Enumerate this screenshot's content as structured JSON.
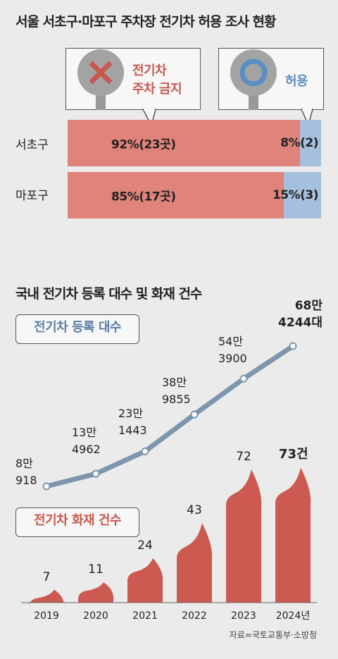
{
  "top": {
    "title": "서울 서초구·마포구 주차장 전기차 허용 조사 현황",
    "sign_ban": {
      "line1": "전기차",
      "line2": "주차 금지",
      "color": "#c9574f"
    },
    "sign_allow": {
      "label": "허용",
      "color": "#5a8fc4"
    },
    "rows": [
      {
        "name": "서초구",
        "ban_label": "92%(23곳)",
        "allow_label": "8%(2)"
      },
      {
        "name": "마포구",
        "ban_label": "85%(17곳)",
        "allow_label": "15%(3)"
      }
    ]
  },
  "bottom": {
    "title": "국내 전기차 등록 대수 및 화재 건수",
    "reg_box": "전기차 등록 대수",
    "fire_box": "전기차 화재 건수",
    "source": "자료=국토교통부·소방청"
  },
  "chart_data": [
    {
      "type": "bar",
      "orientation": "horizontal",
      "stacked": true,
      "categories": [
        "서초구",
        "마포구"
      ],
      "series": [
        {
          "name": "전기차 주차 금지",
          "values": [
            92,
            85
          ],
          "counts": [
            23,
            17
          ]
        },
        {
          "name": "허용",
          "values": [
            8,
            15
          ],
          "counts": [
            2,
            3
          ]
        }
      ],
      "colors": {
        "ban": "#e0837a",
        "allow": "#a5c0dd"
      }
    },
    {
      "type": "line",
      "title": "국내 전기차 등록 대수 및 화재 건수",
      "x": [
        "2019",
        "2020",
        "2021",
        "2022",
        "2023",
        "2024년"
      ],
      "series": [
        {
          "name": "전기차 등록 대수",
          "values": [
            80918,
            134962,
            231443,
            389855,
            543900,
            684244
          ]
        }
      ],
      "point_labels": [
        [
          "8만",
          "918"
        ],
        [
          "13만",
          "4962"
        ],
        [
          "23만",
          "1443"
        ],
        [
          "38만",
          "9855"
        ],
        [
          "54만",
          "3900"
        ],
        [
          "68만",
          "4244대"
        ]
      ],
      "color": "#7d96ad"
    },
    {
      "type": "bar",
      "x": [
        "2019",
        "2020",
        "2021",
        "2022",
        "2023",
        "2024년"
      ],
      "series": [
        {
          "name": "전기차 화재 건수",
          "values": [
            7,
            11,
            24,
            43,
            72,
            73
          ]
        }
      ],
      "value_labels": [
        "7",
        "11",
        "24",
        "43",
        "72",
        "73건"
      ],
      "color": "#cc5a50"
    }
  ]
}
